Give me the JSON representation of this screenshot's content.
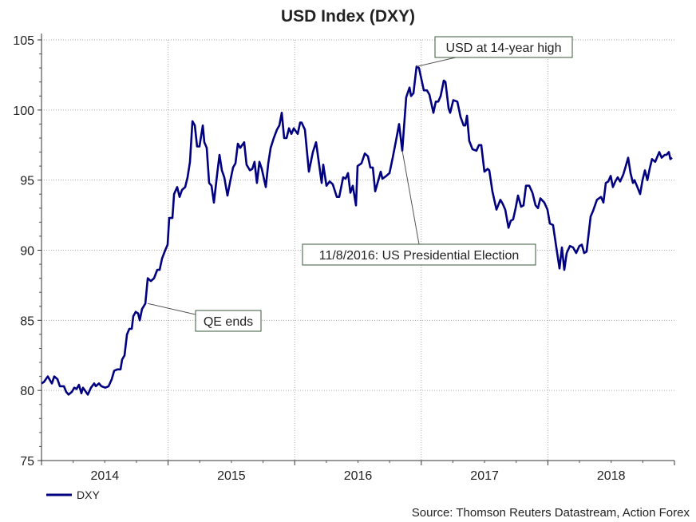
{
  "chart_data": {
    "type": "line",
    "title": "USD Index (DXY)",
    "xlabel": "",
    "ylabel": "",
    "xlim": [
      2014.0,
      2019.0
    ],
    "ylim": [
      75,
      105
    ],
    "yticks": [
      75,
      80,
      85,
      90,
      95,
      100,
      105
    ],
    "xtick_labels": [
      {
        "label": "2014",
        "at": 2014.5
      },
      {
        "label": "2015",
        "at": 2015.5
      },
      {
        "label": "2016",
        "at": 2016.5
      },
      {
        "label": "2017",
        "at": 2017.5
      },
      {
        "label": "2018",
        "at": 2018.5
      }
    ],
    "grid": true,
    "legend": {
      "position": "bottom-left",
      "entries": [
        "DXY"
      ]
    },
    "source": "Source: Thomson Reuters Datastream, Action Forex",
    "series": [
      {
        "name": "DXY",
        "color": "#000080",
        "points": [
          [
            2014.0,
            80.5
          ],
          [
            2014.019,
            80.6
          ],
          [
            2014.05,
            81.0
          ],
          [
            2014.069,
            80.7
          ],
          [
            2014.082,
            80.5
          ],
          [
            2014.101,
            81.0
          ],
          [
            2014.126,
            80.8
          ],
          [
            2014.145,
            80.3
          ],
          [
            2014.177,
            80.3
          ],
          [
            2014.195,
            79.9
          ],
          [
            2014.214,
            79.7
          ],
          [
            2014.24,
            79.9
          ],
          [
            2014.259,
            80.2
          ],
          [
            2014.277,
            80.1
          ],
          [
            2014.296,
            80.4
          ],
          [
            2014.315,
            79.8
          ],
          [
            2014.328,
            80.2
          ],
          [
            2014.366,
            79.7
          ],
          [
            2014.391,
            80.2
          ],
          [
            2014.416,
            80.5
          ],
          [
            2014.429,
            80.3
          ],
          [
            2014.454,
            80.5
          ],
          [
            2014.473,
            80.3
          ],
          [
            2014.504,
            80.2
          ],
          [
            2014.53,
            80.3
          ],
          [
            2014.555,
            80.8
          ],
          [
            2014.574,
            81.4
          ],
          [
            2014.599,
            81.5
          ],
          [
            2014.624,
            81.5
          ],
          [
            2014.637,
            82.2
          ],
          [
            2014.656,
            82.5
          ],
          [
            2014.675,
            84.0
          ],
          [
            2014.694,
            84.4
          ],
          [
            2014.713,
            84.4
          ],
          [
            2014.725,
            85.3
          ],
          [
            2014.744,
            85.6
          ],
          [
            2014.763,
            85.5
          ],
          [
            2014.776,
            85.0
          ],
          [
            2014.794,
            85.8
          ],
          [
            2014.82,
            86.2
          ],
          [
            2014.839,
            88.0
          ],
          [
            2014.864,
            87.8
          ],
          [
            2014.889,
            88.0
          ],
          [
            2014.914,
            88.6
          ],
          [
            2014.933,
            88.6
          ],
          [
            2014.952,
            89.4
          ],
          [
            2014.977,
            90.0
          ],
          [
            2014.996,
            90.4
          ],
          [
            2015.009,
            92.3
          ],
          [
            2015.034,
            92.3
          ],
          [
            2015.047,
            94.0
          ],
          [
            2015.072,
            94.5
          ],
          [
            2015.091,
            93.8
          ],
          [
            2015.11,
            94.3
          ],
          [
            2015.135,
            94.5
          ],
          [
            2015.154,
            95.2
          ],
          [
            2015.173,
            96.3
          ],
          [
            2015.192,
            99.2
          ],
          [
            2015.211,
            98.9
          ],
          [
            2015.229,
            97.4
          ],
          [
            2015.248,
            97.4
          ],
          [
            2015.274,
            98.9
          ],
          [
            2015.286,
            97.7
          ],
          [
            2015.305,
            97.3
          ],
          [
            2015.324,
            94.8
          ],
          [
            2015.343,
            94.6
          ],
          [
            2015.362,
            93.4
          ],
          [
            2015.387,
            95.4
          ],
          [
            2015.406,
            96.8
          ],
          [
            2015.425,
            95.7
          ],
          [
            2015.444,
            95.2
          ],
          [
            2015.469,
            93.9
          ],
          [
            2015.488,
            94.8
          ],
          [
            2015.513,
            95.9
          ],
          [
            2015.532,
            96.2
          ],
          [
            2015.551,
            97.6
          ],
          [
            2015.57,
            97.3
          ],
          [
            2015.601,
            97.7
          ],
          [
            2015.62,
            96.1
          ],
          [
            2015.646,
            95.7
          ],
          [
            2015.665,
            95.8
          ],
          [
            2015.683,
            96.3
          ],
          [
            2015.702,
            94.8
          ],
          [
            2015.721,
            96.3
          ],
          [
            2015.74,
            95.8
          ],
          [
            2015.772,
            94.5
          ],
          [
            2015.791,
            96.2
          ],
          [
            2015.81,
            97.3
          ],
          [
            2015.835,
            98.0
          ],
          [
            2015.86,
            98.6
          ],
          [
            2015.879,
            98.9
          ],
          [
            2015.898,
            99.8
          ],
          [
            2015.917,
            98.0
          ],
          [
            2015.936,
            98.0
          ],
          [
            2015.955,
            98.7
          ],
          [
            2015.974,
            98.3
          ],
          [
            2015.993,
            98.7
          ],
          [
            2016.024,
            98.3
          ],
          [
            2016.043,
            99.1
          ],
          [
            2016.055,
            99.1
          ],
          [
            2016.081,
            98.6
          ],
          [
            2016.112,
            95.6
          ],
          [
            2016.144,
            97.0
          ],
          [
            2016.169,
            97.7
          ],
          [
            2016.213,
            94.8
          ],
          [
            2016.226,
            96.1
          ],
          [
            2016.251,
            94.6
          ],
          [
            2016.276,
            94.9
          ],
          [
            2016.301,
            94.7
          ],
          [
            2016.333,
            93.8
          ],
          [
            2016.352,
            93.8
          ],
          [
            2016.383,
            95.2
          ],
          [
            2016.402,
            95.1
          ],
          [
            2016.421,
            95.5
          ],
          [
            2016.44,
            94.1
          ],
          [
            2016.459,
            94.6
          ],
          [
            2016.484,
            93.2
          ],
          [
            2016.497,
            96.0
          ],
          [
            2016.528,
            96.2
          ],
          [
            2016.554,
            96.9
          ],
          [
            2016.579,
            96.7
          ],
          [
            2016.598,
            95.9
          ],
          [
            2016.617,
            95.9
          ],
          [
            2016.636,
            94.2
          ],
          [
            2016.68,
            95.6
          ],
          [
            2016.693,
            95.1
          ],
          [
            2016.724,
            95.3
          ],
          [
            2016.749,
            95.5
          ],
          [
            2016.774,
            96.6
          ],
          [
            2016.8,
            97.8
          ],
          [
            2016.825,
            99.0
          ],
          [
            2016.85,
            97.1
          ],
          [
            2016.881,
            100.9
          ],
          [
            2016.907,
            101.6
          ],
          [
            2016.919,
            101.0
          ],
          [
            2016.938,
            101.2
          ],
          [
            2016.963,
            103.1
          ],
          [
            2016.982,
            103.0
          ],
          [
            2017.02,
            101.4
          ],
          [
            2017.045,
            101.4
          ],
          [
            2017.064,
            101.1
          ],
          [
            2017.096,
            99.8
          ],
          [
            2017.115,
            100.6
          ],
          [
            2017.134,
            100.6
          ],
          [
            2017.153,
            101.0
          ],
          [
            2017.178,
            102.1
          ],
          [
            2017.191,
            102.0
          ],
          [
            2017.216,
            100.1
          ],
          [
            2017.228,
            99.8
          ],
          [
            2017.253,
            100.7
          ],
          [
            2017.285,
            100.6
          ],
          [
            2017.31,
            99.5
          ],
          [
            2017.335,
            98.9
          ],
          [
            2017.348,
            98.9
          ],
          [
            2017.361,
            99.6
          ],
          [
            2017.379,
            97.8
          ],
          [
            2017.405,
            97.2
          ],
          [
            2017.436,
            97.1
          ],
          [
            2017.455,
            97.5
          ],
          [
            2017.474,
            97.5
          ],
          [
            2017.499,
            95.6
          ],
          [
            2017.524,
            95.8
          ],
          [
            2017.537,
            95.7
          ],
          [
            2017.562,
            94.2
          ],
          [
            2017.594,
            92.9
          ],
          [
            2017.625,
            93.6
          ],
          [
            2017.644,
            93.3
          ],
          [
            2017.663,
            92.9
          ],
          [
            2017.689,
            91.6
          ],
          [
            2017.707,
            92.1
          ],
          [
            2017.726,
            92.2
          ],
          [
            2017.745,
            93.0
          ],
          [
            2017.764,
            93.9
          ],
          [
            2017.789,
            93.1
          ],
          [
            2017.808,
            93.2
          ],
          [
            2017.827,
            94.6
          ],
          [
            2017.853,
            94.6
          ],
          [
            2017.878,
            94.1
          ],
          [
            2017.903,
            93.2
          ],
          [
            2017.922,
            93.0
          ],
          [
            2017.941,
            93.7
          ],
          [
            2017.972,
            93.4
          ],
          [
            2017.997,
            92.9
          ],
          [
            2018.016,
            91.9
          ],
          [
            2018.041,
            91.8
          ],
          [
            2018.067,
            90.2
          ],
          [
            2018.092,
            88.7
          ],
          [
            2018.111,
            90.2
          ],
          [
            2018.13,
            88.6
          ],
          [
            2018.149,
            89.8
          ],
          [
            2018.174,
            90.3
          ],
          [
            2018.199,
            90.2
          ],
          [
            2018.224,
            89.8
          ],
          [
            2018.249,
            90.3
          ],
          [
            2018.268,
            90.4
          ],
          [
            2018.287,
            89.8
          ],
          [
            2018.306,
            89.9
          ],
          [
            2018.338,
            92.4
          ],
          [
            2018.357,
            92.8
          ],
          [
            2018.388,
            93.6
          ],
          [
            2018.42,
            93.8
          ],
          [
            2018.439,
            93.4
          ],
          [
            2018.458,
            94.8
          ],
          [
            2018.477,
            94.9
          ],
          [
            2018.496,
            95.3
          ],
          [
            2018.514,
            94.5
          ],
          [
            2018.533,
            94.9
          ],
          [
            2018.552,
            95.2
          ],
          [
            2018.571,
            94.9
          ],
          [
            2018.596,
            95.4
          ],
          [
            2018.609,
            95.8
          ],
          [
            2018.634,
            96.6
          ],
          [
            2018.653,
            95.5
          ],
          [
            2018.672,
            94.8
          ],
          [
            2018.684,
            95.0
          ],
          [
            2018.703,
            94.6
          ],
          [
            2018.729,
            94.0
          ],
          [
            2018.748,
            95.0
          ],
          [
            2018.767,
            95.7
          ],
          [
            2018.786,
            95.0
          ],
          [
            2018.804,
            95.8
          ],
          [
            2018.823,
            96.5
          ],
          [
            2018.848,
            96.3
          ],
          [
            2018.861,
            96.6
          ],
          [
            2018.88,
            97.0
          ],
          [
            2018.899,
            96.6
          ],
          [
            2018.924,
            96.8
          ],
          [
            2018.937,
            96.8
          ],
          [
            2018.956,
            97.0
          ],
          [
            2018.968,
            96.5
          ],
          [
            2018.981,
            96.6
          ]
        ]
      }
    ],
    "annotations": [
      {
        "text": "QE ends",
        "x": 2014.839,
        "y": 86.2
      },
      {
        "text": "USD at 14-year high",
        "x": 2016.963,
        "y": 103.1
      },
      {
        "text": "11/8/2016: US Presidential Election",
        "x": 2016.85,
        "y": 97.1
      }
    ]
  }
}
